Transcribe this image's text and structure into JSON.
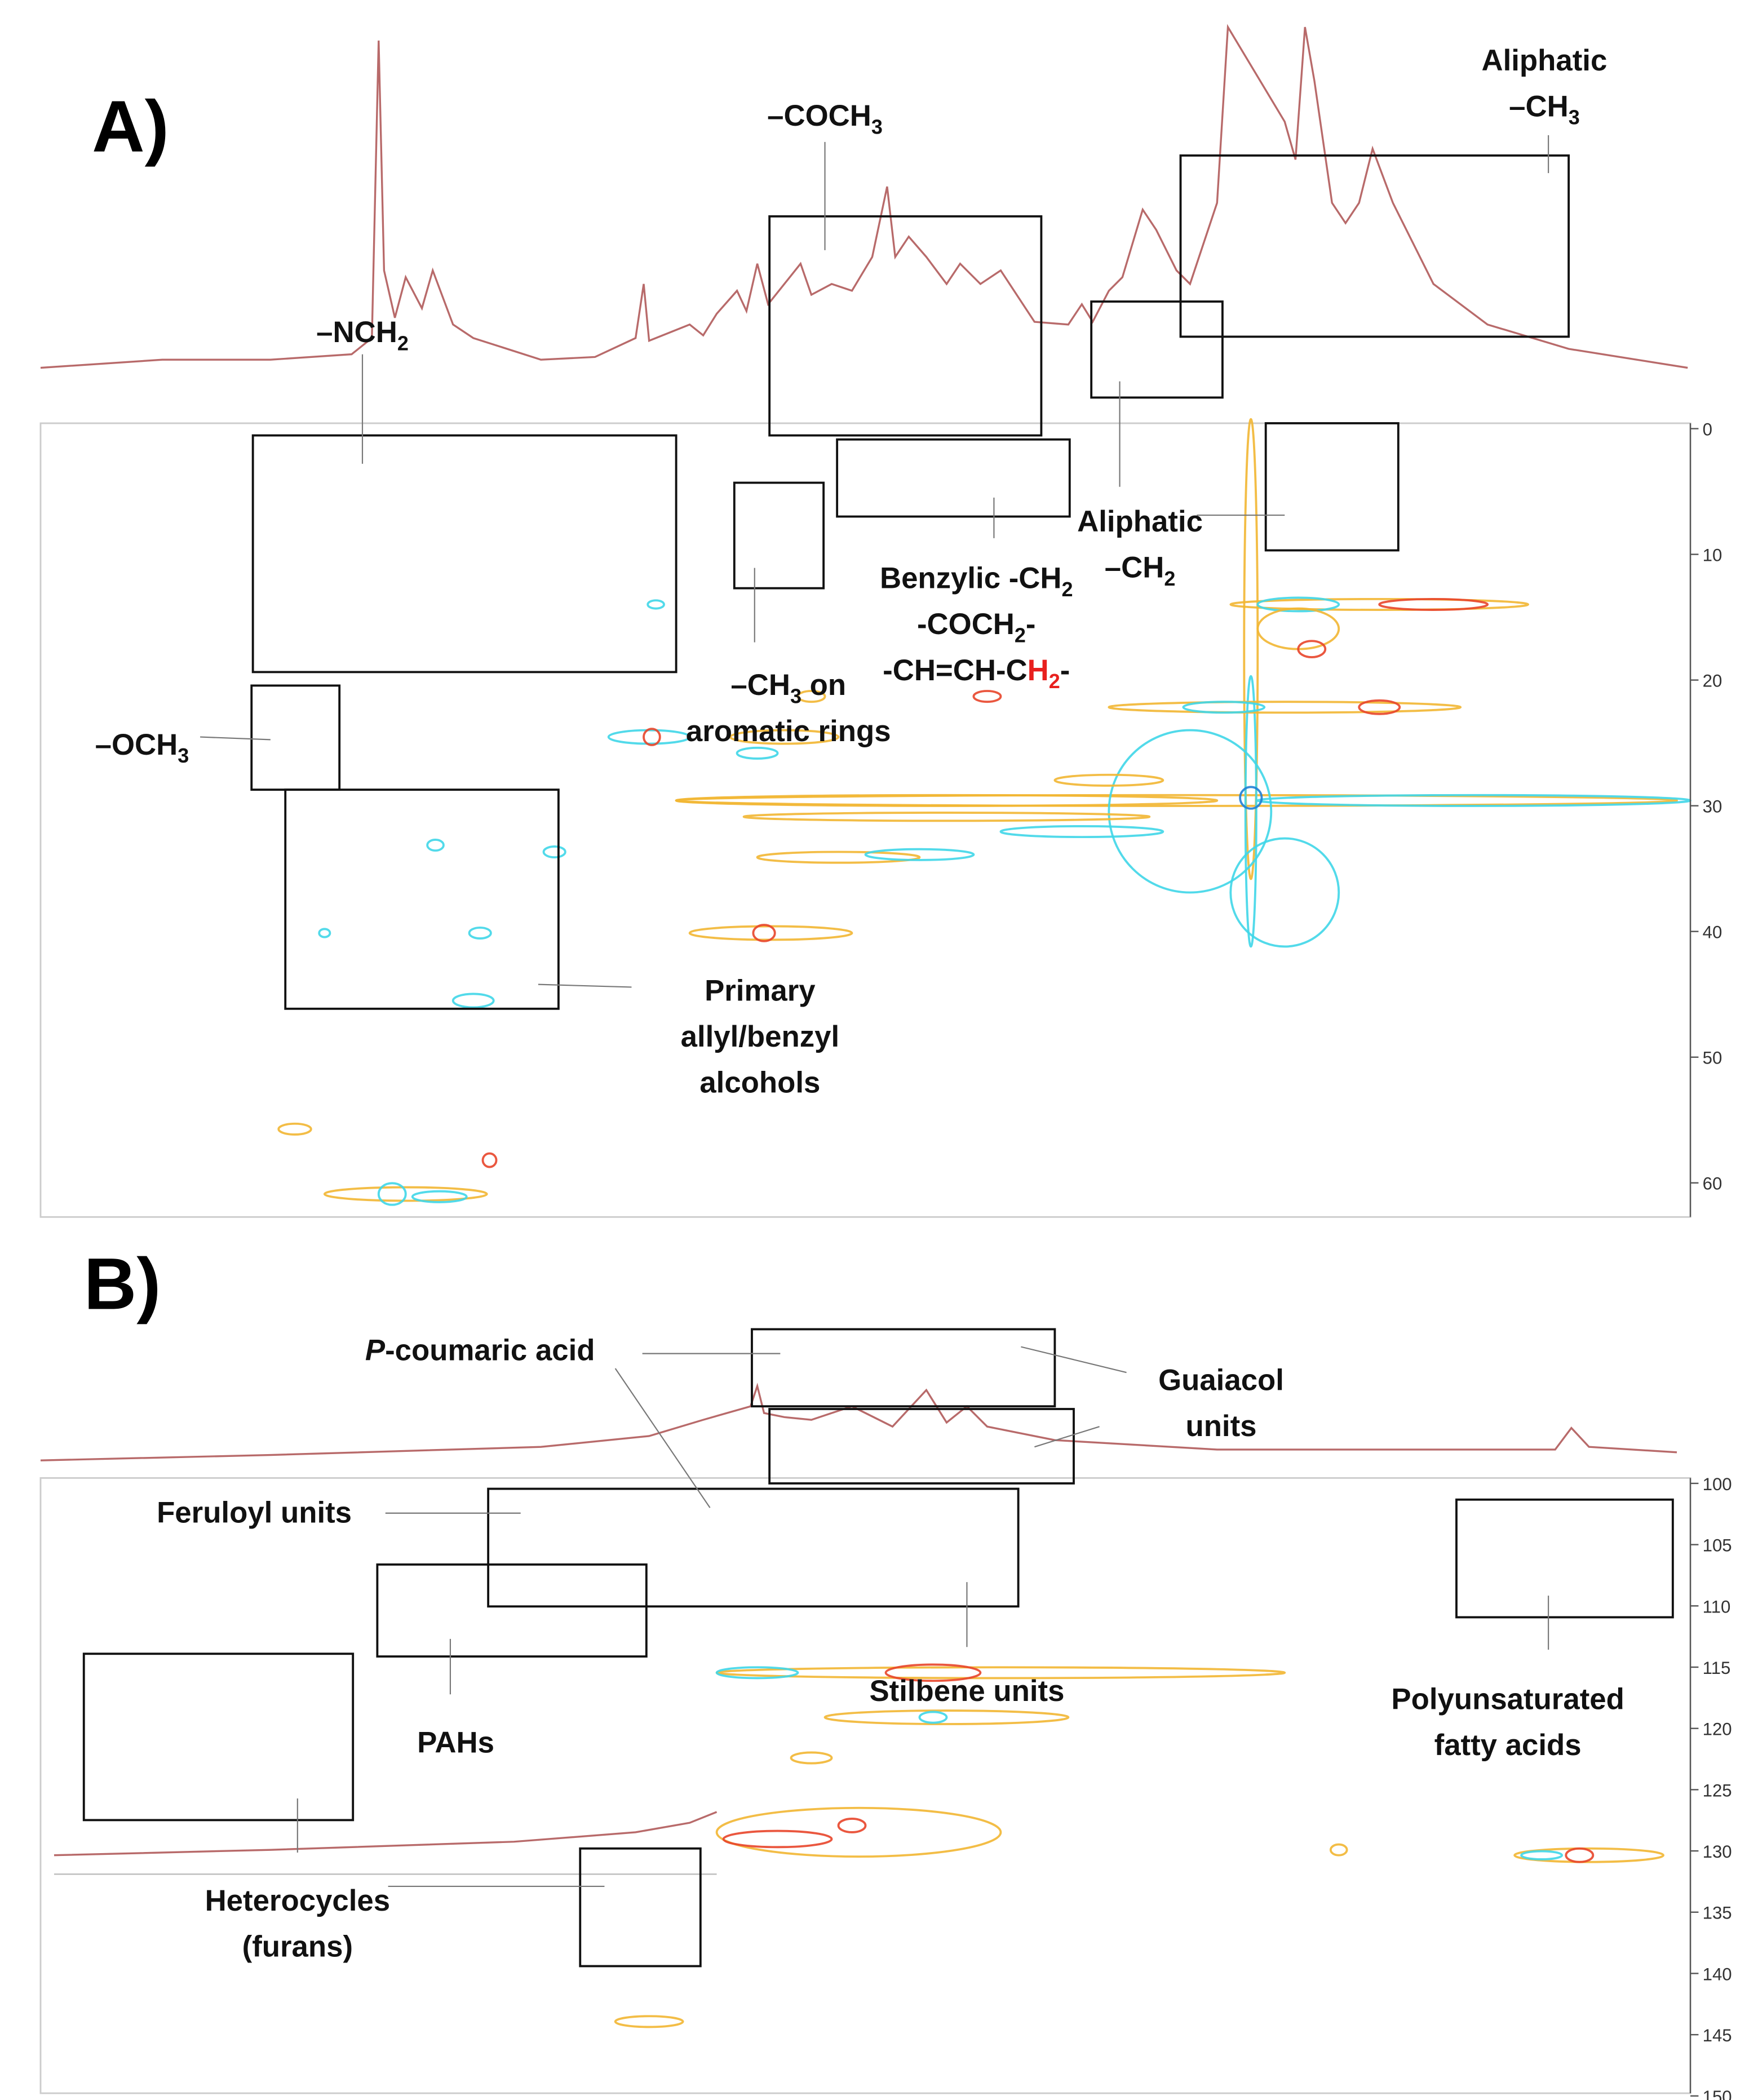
{
  "panels": [
    {
      "label": "A)",
      "ylim": [
        0,
        62.5
      ],
      "yticks": [
        0,
        10,
        20,
        30,
        40,
        50,
        60
      ],
      "annotations": [
        {
          "lines": [
            [
              {
                "text": "–NCH"
              },
              {
                "text": "2",
                "sub": true
              }
            ]
          ]
        },
        {
          "lines": [
            [
              {
                "text": "–COCH"
              },
              {
                "text": "3",
                "sub": true
              }
            ]
          ]
        },
        {
          "lines": [
            [
              {
                "text": "Aliphatic"
              }
            ],
            [
              {
                "text": "–CH"
              },
              {
                "text": "3",
                "sub": true
              }
            ]
          ]
        },
        {
          "lines": [
            [
              {
                "text": "Aliphatic"
              }
            ],
            [
              {
                "text": "–CH"
              },
              {
                "text": "2",
                "sub": true
              }
            ]
          ]
        },
        {
          "lines": [
            [
              {
                "text": "Benzylic -CH"
              },
              {
                "text": "2",
                "sub": true
              }
            ],
            [
              {
                "text": "-COCH"
              },
              {
                "text": "2",
                "sub": true
              },
              {
                "text": "-"
              }
            ],
            [
              {
                "text": "-CH=CH-C"
              },
              {
                "text": "H",
                "color": "#e8201e"
              },
              {
                "text": "2",
                "sub": true,
                "color": "#e8201e"
              },
              {
                "text": "-"
              }
            ]
          ]
        },
        {
          "lines": [
            [
              {
                "text": "–CH"
              },
              {
                "text": "3",
                "sub": true
              },
              {
                "text": " on"
              }
            ],
            [
              {
                "text": "aromatic rings"
              }
            ]
          ]
        },
        {
          "lines": [
            [
              {
                "text": "–OCH"
              },
              {
                "text": "3",
                "sub": true
              }
            ]
          ]
        },
        {
          "lines": [
            [
              {
                "text": "Primary"
              }
            ],
            [
              {
                "text": "allyl/benzyl"
              }
            ],
            [
              {
                "text": "alcohols"
              }
            ]
          ]
        }
      ]
    },
    {
      "label": "B)",
      "ylim": [
        100,
        150
      ],
      "yticks": [
        100,
        105,
        110,
        115,
        120,
        125,
        130,
        135,
        140,
        145,
        150
      ],
      "annotations": [
        {
          "lines": [
            [
              {
                "text": "P",
                "italic": true
              },
              {
                "text": "-coumaric acid"
              }
            ]
          ]
        },
        {
          "lines": [
            [
              {
                "text": "Guaiacol"
              }
            ],
            [
              {
                "text": "units"
              }
            ]
          ]
        },
        {
          "lines": [
            [
              {
                "text": "Feruloyl units"
              }
            ]
          ]
        },
        {
          "lines": [
            [
              {
                "text": "PAHs"
              }
            ]
          ]
        },
        {
          "lines": [
            [
              {
                "text": "Stilbene units"
              }
            ]
          ]
        },
        {
          "lines": [
            [
              {
                "text": "Polyunsaturated"
              }
            ],
            [
              {
                "text": "fatty acids"
              }
            ]
          ]
        },
        {
          "lines": [
            [
              {
                "text": "Heterocycles"
              }
            ],
            [
              {
                "text": "(furans)"
              }
            ]
          ]
        }
      ]
    }
  ]
}
